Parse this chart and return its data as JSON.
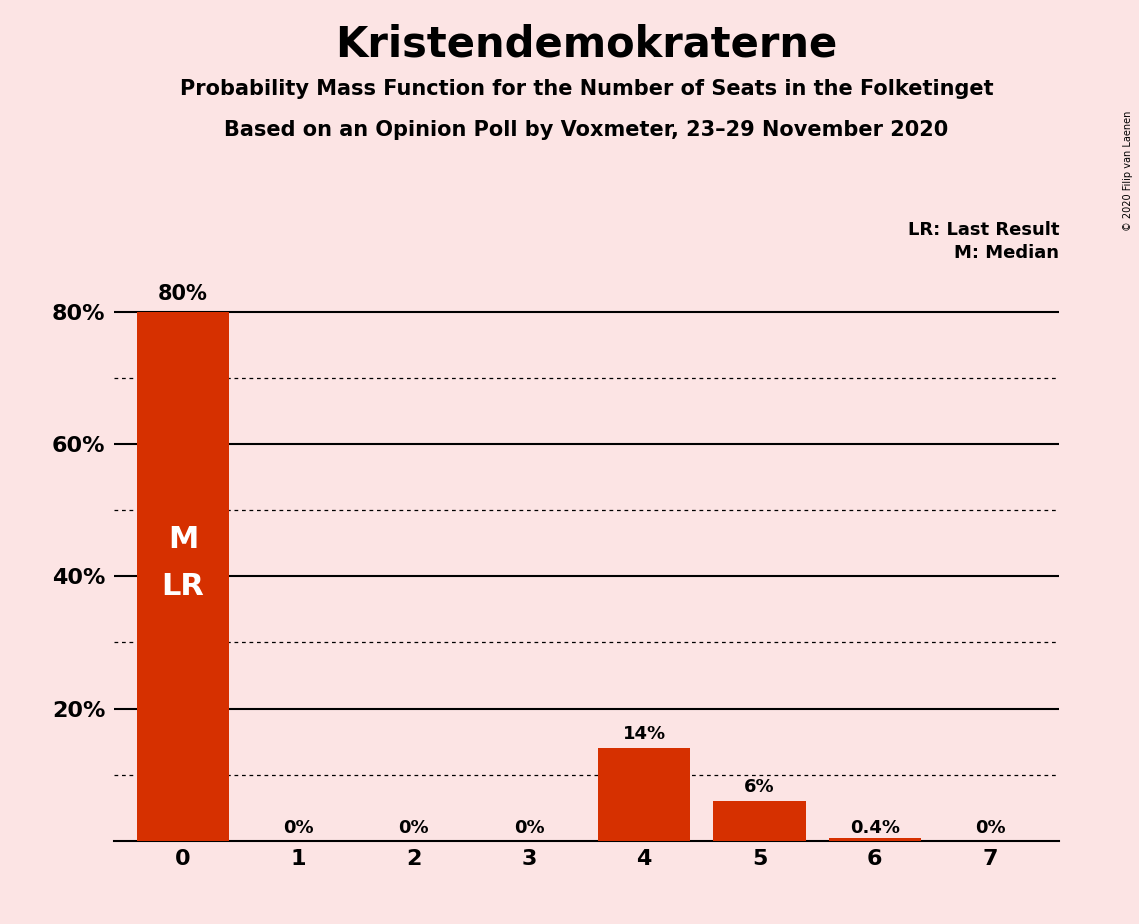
{
  "title": "Kristendemokraterne",
  "subtitle1": "Probability Mass Function for the Number of Seats in the Folketinget",
  "subtitle2": "Based on an Opinion Poll by Voxmeter, 23–29 November 2020",
  "copyright": "© 2020 Filip van Laenen",
  "legend_lr": "LR: Last Result",
  "legend_m": "M: Median",
  "categories": [
    0,
    1,
    2,
    3,
    4,
    5,
    6,
    7
  ],
  "values": [
    0.8,
    0.0,
    0.0,
    0.0,
    0.14,
    0.06,
    0.004,
    0.0
  ],
  "labels": [
    "80%",
    "0%",
    "0%",
    "0%",
    "14%",
    "6%",
    "0.4%",
    "0%"
  ],
  "bar_color": "#d63000",
  "background_color": "#fce4e4",
  "ylim": [
    0,
    0.88
  ],
  "ytick_positions": [
    0.2,
    0.4,
    0.6,
    0.8
  ],
  "ytick_labels": [
    "20%",
    "40%",
    "60%",
    "80%"
  ],
  "solid_lines": [
    0.2,
    0.4,
    0.6,
    0.8
  ],
  "dotted_lines": [
    0.1,
    0.3,
    0.5,
    0.7
  ],
  "label_fontsize": 13,
  "tick_fontsize": 16,
  "title_fontsize": 30,
  "subtitle_fontsize": 15
}
